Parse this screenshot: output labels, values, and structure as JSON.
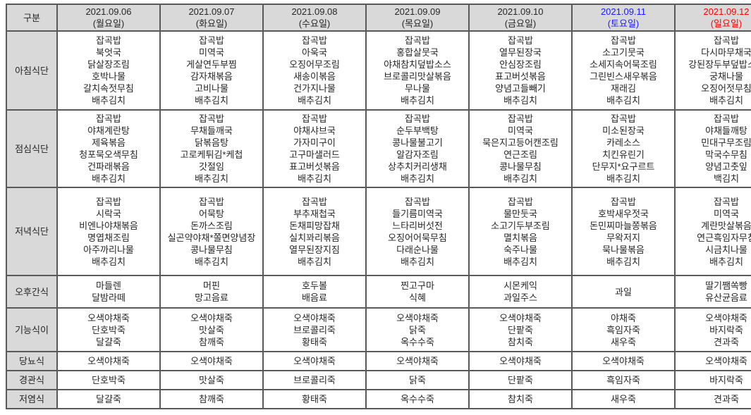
{
  "colors": {
    "header_bg": "#d9d9d9",
    "border": "#595959",
    "weekday_text": "#262626",
    "saturday_text": "#1a1aff",
    "sunday_text": "#ff0000"
  },
  "table": {
    "corner_label": "구분",
    "columns": [
      {
        "date": "2021.09.06",
        "day": "(월요일)",
        "color": "#262626"
      },
      {
        "date": "2021.09.07",
        "day": "(화요일)",
        "color": "#262626"
      },
      {
        "date": "2021.09.08",
        "day": "(수요일)",
        "color": "#262626"
      },
      {
        "date": "2021.09.09",
        "day": "(목요일)",
        "color": "#262626"
      },
      {
        "date": "2021.09.10",
        "day": "(금요일)",
        "color": "#262626"
      },
      {
        "date": "2021.09.11",
        "day": "(토요일)",
        "color": "#1a1aff"
      },
      {
        "date": "2021.09.12",
        "day": "(일요일)",
        "color": "#ff0000"
      }
    ],
    "rows": [
      {
        "label": "아침식단",
        "cells": [
          [
            "잡곡밥",
            "북엇국",
            "닭살장조림",
            "호박나물",
            "갈치속젓무침",
            "배추김치"
          ],
          [
            "잡곡밥",
            "미역국",
            "게살연두부찜",
            "감자채볶음",
            "고비나물",
            "배추김치"
          ],
          [
            "잡곡밥",
            "아욱국",
            "오징어무조림",
            "새송이볶음",
            "건가지나물",
            "배추김치"
          ],
          [
            "잡곡밥",
            "홍합살뭇국",
            "야채참치덮밥소스",
            "브로콜리맛살볶음",
            "무나물",
            "배추김치"
          ],
          [
            "잡곡밥",
            "열무된장국",
            "안심장조림",
            "표고버섯볶음",
            "양념고들빼기",
            "배추김치"
          ],
          [
            "잡곡밥",
            "소고기뭇국",
            "소세지속어묵조림",
            "그린빈스새우볶음",
            "재래김",
            "배추김치"
          ],
          [
            "잡곡밥",
            "다시마무채국",
            "강된장두부덮밥소스",
            "궁채나물",
            "오징어젓무침",
            "배추김치"
          ]
        ]
      },
      {
        "label": "점심식단",
        "cells": [
          [
            "잡곡밥",
            "야채계란탕",
            "제육볶음",
            "청포묵오색무침",
            "건파래볶음",
            "배추김치"
          ],
          [
            "잡곡밥",
            "무채들깨국",
            "닭볶음탕",
            "고로케튀김*케첩",
            "갓절임",
            "배추김치"
          ],
          [
            "잡곡밥",
            "야채샤브국",
            "가자미구이",
            "고구마샐러드",
            "표고버섯볶음",
            "배추김치"
          ],
          [
            "잡곡밥",
            "순두부백탕",
            "콩나물불고기",
            "알감자조림",
            "상추치커리생채",
            "배추김치"
          ],
          [
            "잡곡밥",
            "미역국",
            "묵은지고등어캔조림",
            "연근조림",
            "콩나물무침",
            "배추김치"
          ],
          [
            "잡곡밥",
            "미소된장국",
            "카레소스",
            "치킨유린기",
            "단무지*요구르트",
            "배추김치"
          ],
          [
            "잡곡밥",
            "야채들깨탕",
            "민대구무조림",
            "막국수무침",
            "양념고춧잎",
            "백김치"
          ]
        ]
      },
      {
        "label": "저녁식단",
        "cells": [
          [
            "잡곡밥",
            "시락국",
            "비엔나야채볶음",
            "명엽채조림",
            "아주까리나물",
            "배추김치"
          ],
          [
            "잡곡밥",
            "어묵탕",
            "돈까스조림",
            "실곤약야채*쫄면양념장",
            "콩나물무침",
            "배추김치"
          ],
          [
            "잡곡밥",
            "부추재첩국",
            "돈채피망잡채",
            "실치꽈리볶음",
            "열무된장지짐",
            "배추김치"
          ],
          [
            "잡곡밥",
            "들기름미역국",
            "느타리버섯전",
            "오징어어묵무침",
            "다래순나물",
            "배추김치"
          ],
          [
            "잡곡밥",
            "물만둣국",
            "소고기두부조림",
            "멸치볶음",
            "숙주나물",
            "배추김치"
          ],
          [
            "잡곡밥",
            "호박새우젓국",
            "돈민찌마늘쫑볶음",
            "무왁저지",
            "묵나물볶음",
            "배추김치"
          ],
          [
            "잡곡밥",
            "미역국",
            "계란맛살볶음",
            "연근흑임자무침",
            "시금치나물",
            "배추김치"
          ]
        ]
      },
      {
        "label": "오후간식",
        "cells": [
          [
            "마들렌",
            "달밤라떼"
          ],
          [
            "머핀",
            "망고음료"
          ],
          [
            "호두볼",
            "배음료"
          ],
          [
            "찐고구마",
            "식혜"
          ],
          [
            "시몬케익",
            "과일주스"
          ],
          [
            "과일"
          ],
          [
            "딸기쨈쏙빵",
            "유산균음료"
          ]
        ]
      },
      {
        "label": "기능식이",
        "cells": [
          [
            "오색야채죽",
            "단호박죽",
            "달걀죽"
          ],
          [
            "오색야채죽",
            "맛살죽",
            "참깨죽"
          ],
          [
            "오색야채죽",
            "브로콜리죽",
            "황태죽"
          ],
          [
            "오색야채죽",
            "닭죽",
            "옥수수죽"
          ],
          [
            "오색야채죽",
            "단팥죽",
            "참치죽"
          ],
          [
            "야채죽",
            "흑임자죽",
            "새우죽"
          ],
          [
            "오색야채죽",
            "바지락죽",
            "견과죽"
          ]
        ]
      },
      {
        "label": "당뇨식",
        "cells": [
          [
            "오색야채죽"
          ],
          [
            "오색야채죽"
          ],
          [
            "오색야채죽"
          ],
          [
            "오색야채죽"
          ],
          [
            "오색야채죽"
          ],
          [
            "오색야채죽"
          ],
          [
            "오색야채죽"
          ]
        ]
      },
      {
        "label": "경관식",
        "cells": [
          [
            "단호박죽"
          ],
          [
            "맛살죽"
          ],
          [
            "브로콜리죽"
          ],
          [
            "닭죽"
          ],
          [
            "단팥죽"
          ],
          [
            "흑임자죽"
          ],
          [
            "바지락죽"
          ]
        ]
      },
      {
        "label": "저염식",
        "cells": [
          [
            "달걀죽"
          ],
          [
            "참깨죽"
          ],
          [
            "황태죽"
          ],
          [
            "옥수수죽"
          ],
          [
            "참치죽"
          ],
          [
            "새우죽"
          ],
          [
            "견과죽"
          ]
        ]
      }
    ]
  }
}
